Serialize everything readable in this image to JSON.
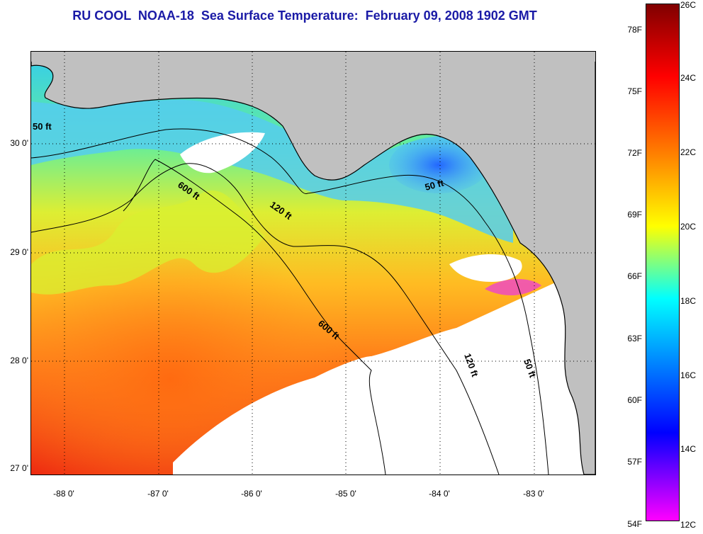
{
  "title": "RU COOL  NOAA-18  Sea Surface Temperature:  February 09, 2008 1902 GMT",
  "map": {
    "latitude_labels": [
      "30 0'",
      "29 0'",
      "28 0'",
      "27 0'"
    ],
    "longitude_labels": [
      "-88 0'",
      "-87 0'",
      "-86 0'",
      "-85 0'",
      "-84 0'",
      "-83 0'"
    ],
    "contour_labels": [
      "50 ft",
      "600 ft",
      "120 ft",
      "50 ft",
      "600 ft",
      "120 ft",
      "50 ft"
    ],
    "colors": {
      "land": "#c0c0c0",
      "no_data": "#ffffff"
    }
  },
  "colorbar": {
    "fahrenheit_labels": [
      "78F",
      "75F",
      "72F",
      "69F",
      "66F",
      "63F",
      "60F",
      "57F",
      "54F"
    ],
    "celsius_labels": [
      "26C",
      "24C",
      "22C",
      "20C",
      "18C",
      "16C",
      "14C",
      "12C"
    ],
    "stops": [
      "#800000",
      "#ff0000",
      "#ff8000",
      "#ffff00",
      "#00ffff",
      "#0000ff",
      "#ff00ff"
    ]
  }
}
